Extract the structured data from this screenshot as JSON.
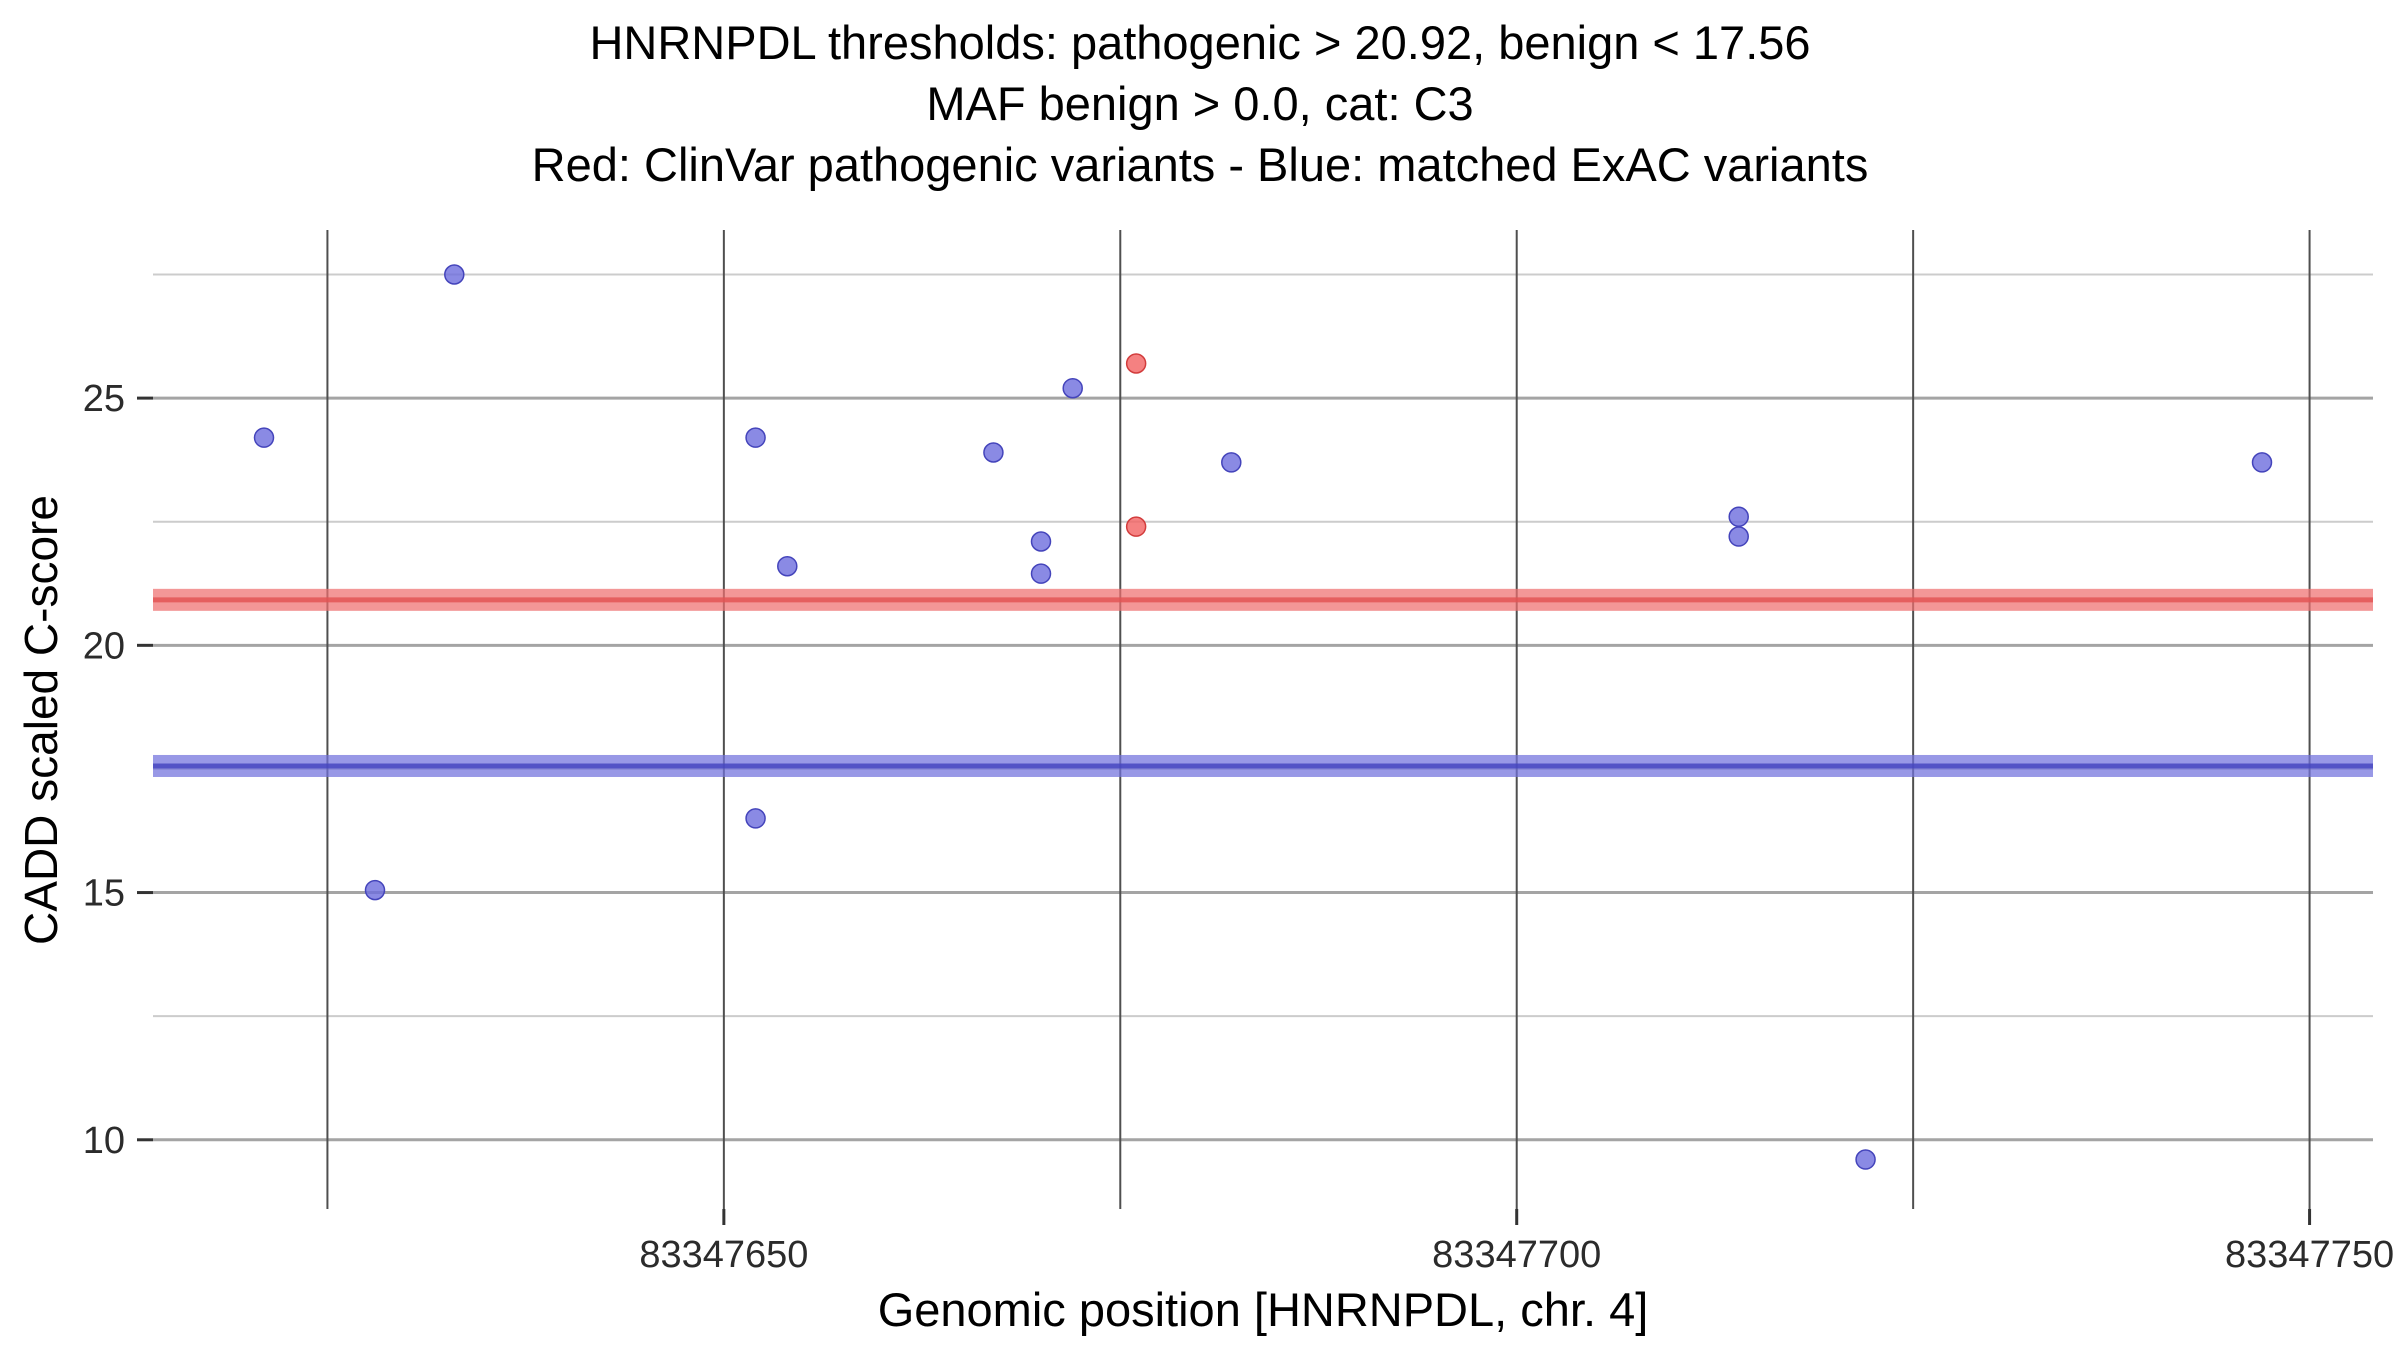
{
  "chart_data": {
    "type": "scatter",
    "title_lines": [
      "HNRNPDL thresholds: pathogenic > 20.92, benign < 17.56",
      "MAF benign > 0.0, cat: C3",
      "Red: ClinVar pathogenic variants - Blue: matched ExAC variants"
    ],
    "xlabel": "Genomic position [HNRNPDL, chr. 4]",
    "ylabel": "CADD scaled C-score",
    "xlim": [
      83347614,
      83347754
    ],
    "ylim": [
      8.6,
      28.4
    ],
    "x_ticks": [
      83347650,
      83347700,
      83347750
    ],
    "y_ticks": [
      10,
      15,
      20,
      25
    ],
    "x_minor_gridlines": [
      83347625,
      83347675,
      83347725
    ],
    "y_minor_gridlines": [
      12.5,
      17.5,
      22.5,
      27.5
    ],
    "grid": true,
    "legend_position": "in-title",
    "thresholds": [
      {
        "name": "pathogenic",
        "label": "pathogenic > 20.92",
        "value": 20.92,
        "band_color": "#ee6f6f",
        "line_color": "#e25555"
      },
      {
        "name": "benign",
        "label": "benign < 17.56",
        "value": 17.56,
        "band_color": "#7070dc",
        "line_color": "#4646c0"
      }
    ],
    "series": [
      {
        "name": "ClinVar pathogenic variants",
        "color": "#f26161",
        "stroke": "#d23c3c",
        "points": [
          [
            83347676,
            25.7
          ],
          [
            83347676,
            22.4
          ]
        ]
      },
      {
        "name": "matched ExAC variants",
        "color": "#6d6ddd",
        "stroke": "#4444bb",
        "points": [
          [
            83347621,
            24.2
          ],
          [
            83347628,
            15.05
          ],
          [
            83347633,
            27.5
          ],
          [
            83347652,
            24.2
          ],
          [
            83347652,
            16.5
          ],
          [
            83347654,
            21.6
          ],
          [
            83347667,
            23.9
          ],
          [
            83347670,
            22.1
          ],
          [
            83347670,
            21.45
          ],
          [
            83347672,
            25.2
          ],
          [
            83347682,
            23.7
          ],
          [
            83347714,
            22.6
          ],
          [
            83347714,
            22.2
          ],
          [
            83347722,
            9.6
          ],
          [
            83347747,
            23.7
          ]
        ]
      }
    ]
  },
  "colors": {
    "background": "#ffffff",
    "grid_major_y": "#a4a4a4",
    "grid_minor_y": "#cccccc",
    "grid_x": "#4f4f4f",
    "tick_mark": "#333333",
    "axis_text": "#2b2b2b",
    "title_text": "#000000"
  }
}
